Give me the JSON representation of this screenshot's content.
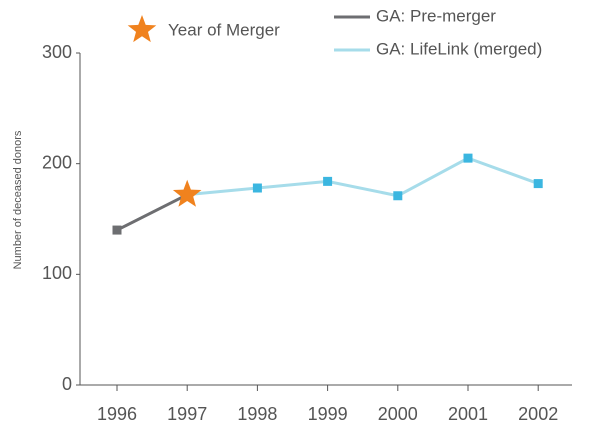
{
  "chart_data": {
    "type": "line",
    "y_label": "Number of deceased donors",
    "categories": [
      "1996",
      "1997",
      "1998",
      "1999",
      "2000",
      "2001",
      "2002"
    ],
    "series": [
      {
        "name": "GA: Pre-merger",
        "color": "#6d6e71",
        "marker_color": "#6d6e71",
        "values": [
          140,
          172,
          null,
          null,
          null,
          null,
          null
        ]
      },
      {
        "name": "GA: LifeLink (merged)",
        "color": "#a6dcea",
        "marker_color": "#3bb6e0",
        "values": [
          null,
          172,
          178,
          184,
          171,
          205,
          182
        ]
      }
    ],
    "annotation": {
      "text": "Year of Merger",
      "x": "1997",
      "color": "#f0821e"
    },
    "ylim": [
      0,
      300
    ],
    "yticks": [
      0,
      100,
      200,
      300
    ],
    "grid": false
  }
}
